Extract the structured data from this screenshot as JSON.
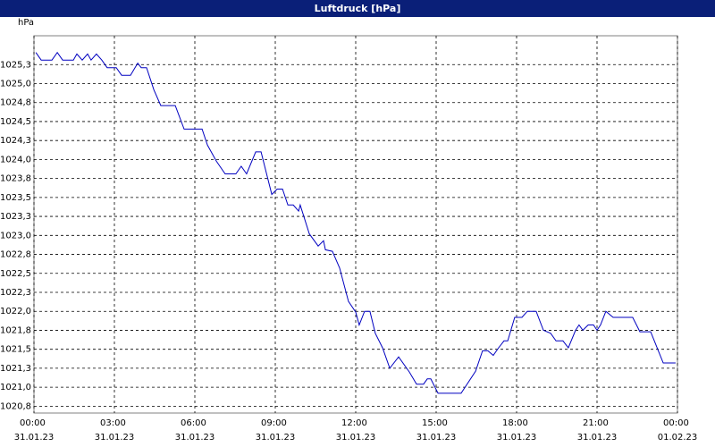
{
  "chart_data": {
    "type": "line",
    "title": "Luftdruck [hPa]",
    "y_unit": "hPa",
    "xlim": [
      0,
      24
    ],
    "ylim": [
      1020.66,
      1025.63
    ],
    "grid": true,
    "xticks": [
      {
        "value": 0,
        "label": "00:00 31.01.23"
      },
      {
        "value": 3,
        "label": "03:00 31.01.23"
      },
      {
        "value": 6,
        "label": "06:00 31.01.23"
      },
      {
        "value": 9,
        "label": "09:00 31.01.23"
      },
      {
        "value": 12,
        "label": "12:00 31.01.23"
      },
      {
        "value": 15,
        "label": "15:00 31.01.23"
      },
      {
        "value": 18,
        "label": "18:00 31.01.23"
      },
      {
        "value": 21,
        "label": "21:00 31.01.23"
      },
      {
        "value": 24,
        "label": "00:00 01.02.23"
      }
    ],
    "yticks": [
      {
        "value": 1020.75,
        "label": "1020,8"
      },
      {
        "value": 1021,
        "label": "1021,0"
      },
      {
        "value": 1021.25,
        "label": "1021,3"
      },
      {
        "value": 1021.5,
        "label": "1021,5"
      },
      {
        "value": 1021.75,
        "label": "1021,8"
      },
      {
        "value": 1022,
        "label": "1022,0"
      },
      {
        "value": 1022.25,
        "label": "1022,3"
      },
      {
        "value": 1022.5,
        "label": "1022,5"
      },
      {
        "value": 1022.75,
        "label": "1022,8"
      },
      {
        "value": 1023,
        "label": "1023,0"
      },
      {
        "value": 1023.25,
        "label": "1023,3"
      },
      {
        "value": 1023.5,
        "label": "1023,5"
      },
      {
        "value": 1023.75,
        "label": "1023,8"
      },
      {
        "value": 1024,
        "label": "1024,0"
      },
      {
        "value": 1024.25,
        "label": "1024,3"
      },
      {
        "value": 1024.5,
        "label": "1024,5"
      },
      {
        "value": 1024.75,
        "label": "1024,8"
      },
      {
        "value": 1025,
        "label": "1025,0"
      },
      {
        "value": 1025.25,
        "label": "1025,3"
      }
    ],
    "x": [
      0.07,
      0.27,
      0.67,
      0.87,
      1.07,
      1.47,
      1.6,
      1.8,
      2,
      2.13,
      2.33,
      2.53,
      2.73,
      3.07,
      3.27,
      3.6,
      3.87,
      4,
      4.2,
      4.47,
      4.73,
      5.27,
      5.6,
      6.27,
      6.47,
      6.8,
      7.13,
      7.53,
      7.73,
      7.93,
      8.27,
      8.47,
      8.67,
      8.87,
      9.07,
      9.27,
      9.47,
      9.67,
      9.87,
      9.93,
      10.27,
      10.6,
      10.8,
      10.87,
      11.13,
      11.4,
      11.73,
      12,
      12.13,
      12.33,
      12.53,
      12.73,
      13,
      13.27,
      13.6,
      14,
      14.27,
      14.53,
      14.67,
      14.8,
      15.07,
      15.93,
      16.47,
      16.73,
      16.93,
      17.13,
      17.33,
      17.53,
      17.67,
      17.93,
      18.2,
      18.4,
      18.73,
      19,
      19.27,
      19.47,
      19.73,
      19.93,
      20.2,
      20.33,
      20.47,
      20.67,
      20.87,
      21,
      21.13,
      21.33,
      21.6,
      22.33,
      22.6,
      23,
      23.47,
      23.93
    ],
    "series": [
      {
        "color": "#0000c0",
        "values": [
          1025.41,
          1025.31,
          1025.31,
          1025.41,
          1025.31,
          1025.31,
          1025.39,
          1025.31,
          1025.39,
          1025.31,
          1025.39,
          1025.31,
          1025.21,
          1025.21,
          1025.11,
          1025.11,
          1025.27,
          1025.21,
          1025.21,
          1024.92,
          1024.71,
          1024.71,
          1024.4,
          1024.4,
          1024.19,
          1023.98,
          1023.81,
          1023.81,
          1023.91,
          1023.81,
          1024.1,
          1024.1,
          1023.82,
          1023.54,
          1023.61,
          1023.61,
          1023.4,
          1023.4,
          1023.32,
          1023.4,
          1023.02,
          1022.86,
          1022.93,
          1022.81,
          1022.79,
          1022.57,
          1022.13,
          1021.99,
          1021.82,
          1022,
          1022,
          1021.71,
          1021.52,
          1021.25,
          1021.4,
          1021.2,
          1021.04,
          1021.04,
          1021.11,
          1021.11,
          1020.92,
          1020.92,
          1021.21,
          1021.48,
          1021.48,
          1021.42,
          1021.52,
          1021.61,
          1021.61,
          1021.92,
          1021.92,
          1022,
          1022,
          1021.75,
          1021.71,
          1021.61,
          1021.61,
          1021.52,
          1021.75,
          1021.82,
          1021.75,
          1021.82,
          1021.82,
          1021.75,
          1021.82,
          1022,
          1021.92,
          1021.92,
          1021.73,
          1021.73,
          1021.32,
          1021.32
        ]
      }
    ]
  }
}
